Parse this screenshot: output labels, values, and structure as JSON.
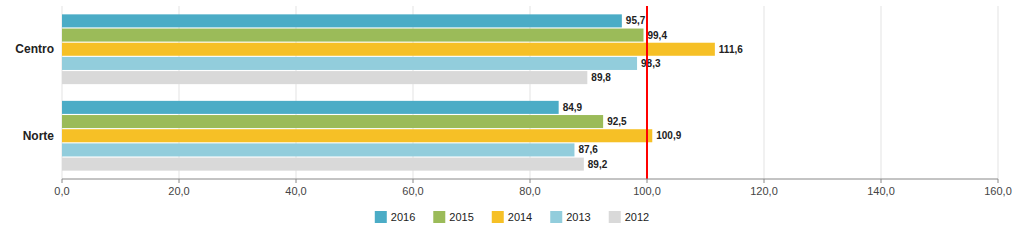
{
  "chart_data": {
    "type": "bar",
    "orientation": "horizontal",
    "categories": [
      "Centro",
      "Norte"
    ],
    "series": [
      {
        "name": "2016",
        "color": "#4BACC6",
        "values": [
          95.7,
          84.9
        ],
        "value_labels": [
          "95,7",
          "84,9"
        ]
      },
      {
        "name": "2015",
        "color": "#9BBB59",
        "values": [
          99.4,
          92.5
        ],
        "value_labels": [
          "99,4",
          "92,5"
        ]
      },
      {
        "name": "2014",
        "color": "#F6C026",
        "values": [
          111.6,
          100.9
        ],
        "value_labels": [
          "111,6",
          "100,9"
        ]
      },
      {
        "name": "2013",
        "color": "#92CDDC",
        "values": [
          98.3,
          87.6
        ],
        "value_labels": [
          "98,3",
          "87,6"
        ]
      },
      {
        "name": "2012",
        "color": "#D9D9D9",
        "values": [
          89.8,
          89.2
        ],
        "value_labels": [
          "89,8",
          "89,2"
        ]
      }
    ],
    "xlim": [
      0,
      160
    ],
    "xticks": [
      {
        "value": 0,
        "label": "0,0"
      },
      {
        "value": 20,
        "label": "20,0"
      },
      {
        "value": 40,
        "label": "40,0"
      },
      {
        "value": 60,
        "label": "60,0"
      },
      {
        "value": 80,
        "label": "80,0"
      },
      {
        "value": 100,
        "label": "100,0"
      },
      {
        "value": 120,
        "label": "120,0"
      },
      {
        "value": 140,
        "label": "140,0"
      },
      {
        "value": 160,
        "label": "160,0"
      }
    ],
    "reference_line": {
      "value": 100,
      "color": "#FF0000"
    },
    "grid": true,
    "data_labels": true,
    "legend": "bottom"
  }
}
